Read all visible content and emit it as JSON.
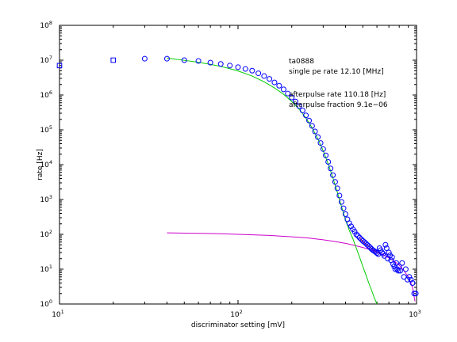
{
  "chart_data": {
    "type": "scatter",
    "xscale": "log",
    "yscale": "log",
    "xlim": [
      10,
      1000
    ],
    "ylim": [
      1,
      100000000
    ],
    "xlabel": "discriminator setting [mV]",
    "ylabel": "rate [Hz]",
    "grid": false,
    "x_ticks": [
      {
        "value": 10,
        "base": "10",
        "exp": "1"
      },
      {
        "value": 100,
        "base": "10",
        "exp": "2"
      },
      {
        "value": 1000,
        "base": "10",
        "exp": "3"
      }
    ],
    "y_ticks": [
      {
        "value": 1,
        "base": "10",
        "exp": "0"
      },
      {
        "value": 10,
        "base": "10",
        "exp": "1"
      },
      {
        "value": 100,
        "base": "10",
        "exp": "2"
      },
      {
        "value": 1000,
        "base": "10",
        "exp": "3"
      },
      {
        "value": 10000,
        "base": "10",
        "exp": "4"
      },
      {
        "value": 100000,
        "base": "10",
        "exp": "5"
      },
      {
        "value": 1000000,
        "base": "10",
        "exp": "6"
      },
      {
        "value": 10000000,
        "base": "10",
        "exp": "7"
      },
      {
        "value": 100000000,
        "base": "10",
        "exp": "8"
      }
    ],
    "annotations": {
      "line1": "ta0888",
      "line2": "single pe rate 12.10 [MHz]",
      "line3": "afterpulse rate 110.18 [Hz]",
      "line4": "afterpulse fraction 9.1e−06"
    },
    "colors": {
      "circles": "#0000ff",
      "squares": "#0000ff",
      "single_pe_fit": "#00cc00",
      "afterpulse_fit": "#cc00cc",
      "fit_overlap": "#ff0000"
    },
    "square_points": [
      [
        10,
        7000000
      ],
      [
        20,
        10000000
      ]
    ],
    "circle_points": [
      [
        30,
        11000000
      ],
      [
        40,
        11000000
      ],
      [
        50,
        10000000
      ],
      [
        60,
        9500000
      ],
      [
        70,
        8500000
      ],
      [
        80,
        7800000
      ],
      [
        90,
        7000000
      ],
      [
        100,
        6300000
      ],
      [
        110,
        5600000
      ],
      [
        120,
        5000000
      ],
      [
        130,
        4200000
      ],
      [
        140,
        3500000
      ],
      [
        150,
        2900000
      ],
      [
        160,
        2300000
      ],
      [
        170,
        1850000
      ],
      [
        180,
        1450000
      ],
      [
        190,
        1100000
      ],
      [
        200,
        850000
      ],
      [
        210,
        650000
      ],
      [
        220,
        480000
      ],
      [
        230,
        360000
      ],
      [
        240,
        260000
      ],
      [
        250,
        185000
      ],
      [
        260,
        130000
      ],
      [
        270,
        90000
      ],
      [
        280,
        62000
      ],
      [
        290,
        42000
      ],
      [
        300,
        28000
      ],
      [
        310,
        18500
      ],
      [
        320,
        12000
      ],
      [
        330,
        7800
      ],
      [
        340,
        5000
      ],
      [
        350,
        3200
      ],
      [
        360,
        2100
      ],
      [
        370,
        1300
      ],
      [
        380,
        850
      ],
      [
        390,
        560
      ],
      [
        400,
        380
      ],
      [
        410,
        270
      ],
      [
        420,
        210
      ],
      [
        430,
        170
      ],
      [
        440,
        140
      ],
      [
        450,
        120
      ],
      [
        460,
        100
      ],
      [
        470,
        90
      ],
      [
        480,
        80
      ],
      [
        490,
        72
      ],
      [
        500,
        65
      ],
      [
        510,
        60
      ],
      [
        520,
        55
      ],
      [
        530,
        50
      ],
      [
        540,
        46
      ],
      [
        550,
        42
      ],
      [
        560,
        38
      ],
      [
        570,
        35
      ],
      [
        580,
        33
      ],
      [
        590,
        31
      ],
      [
        600,
        29
      ],
      [
        610,
        27
      ],
      [
        620,
        40
      ],
      [
        630,
        35
      ],
      [
        640,
        30
      ],
      [
        650,
        28
      ],
      [
        660,
        24
      ],
      [
        670,
        50
      ],
      [
        680,
        40
      ],
      [
        690,
        20
      ],
      [
        700,
        30
      ],
      [
        710,
        25
      ],
      [
        720,
        18
      ],
      [
        730,
        22
      ],
      [
        740,
        14
      ],
      [
        750,
        12
      ],
      [
        760,
        10
      ],
      [
        770,
        15
      ],
      [
        780,
        10
      ],
      [
        790,
        9
      ],
      [
        800,
        12
      ],
      [
        810,
        9
      ],
      [
        830,
        15
      ],
      [
        850,
        6
      ],
      [
        870,
        10
      ],
      [
        890,
        5
      ],
      [
        910,
        6
      ],
      [
        930,
        5
      ],
      [
        950,
        4
      ],
      [
        970,
        2
      ],
      [
        990,
        2
      ]
    ],
    "single_pe_fit": [
      [
        40,
        11500000
      ],
      [
        50,
        9900000
      ],
      [
        60,
        8700000
      ],
      [
        70,
        7600000
      ],
      [
        80,
        6600000
      ],
      [
        90,
        5700000
      ],
      [
        100,
        4900000
      ],
      [
        120,
        3500000
      ],
      [
        140,
        2400000
      ],
      [
        160,
        1600000
      ],
      [
        180,
        1050000
      ],
      [
        200,
        650000
      ],
      [
        220,
        390000
      ],
      [
        240,
        220000
      ],
      [
        260,
        115000
      ],
      [
        280,
        55000
      ],
      [
        300,
        25000
      ],
      [
        320,
        10500
      ],
      [
        340,
        4200
      ],
      [
        360,
        1600
      ],
      [
        380,
        620
      ],
      [
        400,
        260
      ],
      [
        420,
        130
      ],
      [
        440,
        75
      ],
      [
        460,
        40
      ],
      [
        480,
        22
      ],
      [
        500,
        12
      ],
      [
        520,
        7
      ],
      [
        540,
        4
      ],
      [
        560,
        2.5
      ],
      [
        580,
        1.5
      ],
      [
        600,
        1.0
      ]
    ],
    "afterpulse_fit": [
      [
        40,
        110
      ],
      [
        60,
        107
      ],
      [
        80,
        104
      ],
      [
        100,
        100
      ],
      [
        150,
        93
      ],
      [
        200,
        85
      ],
      [
        250,
        78
      ],
      [
        300,
        70
      ],
      [
        350,
        62
      ],
      [
        400,
        55
      ],
      [
        450,
        48
      ],
      [
        500,
        42
      ],
      [
        550,
        36
      ],
      [
        600,
        31
      ],
      [
        650,
        26
      ],
      [
        700,
        21
      ],
      [
        750,
        17
      ],
      [
        800,
        13
      ],
      [
        850,
        9
      ],
      [
        900,
        6
      ],
      [
        950,
        3
      ],
      [
        980,
        1.2
      ]
    ],
    "fit_overlap": [
      [
        480,
        80
      ],
      [
        500,
        62
      ],
      [
        520,
        52
      ],
      [
        540,
        45
      ],
      [
        560,
        40
      ],
      [
        580,
        35
      ],
      [
        600,
        31
      ],
      [
        620,
        28
      ],
      [
        640,
        25
      ]
    ]
  }
}
